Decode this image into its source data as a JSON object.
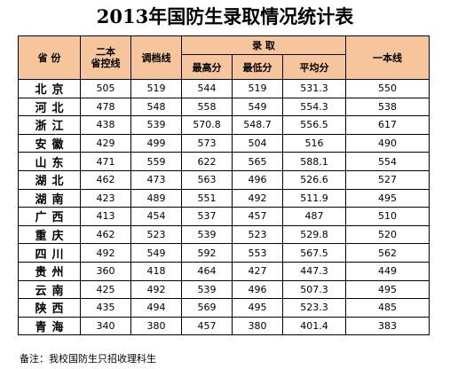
{
  "title": "2013年国防生录取情况统计表",
  "headers": {
    "province": "省 份",
    "control_line": "二本\n省控线",
    "archive_line": "调档线",
    "admission": "录  取",
    "max": "最高分",
    "min": "最低分",
    "avg": "平均分",
    "tier_one": "一本线"
  },
  "rows": [
    {
      "province": "北京",
      "control": "505",
      "archive": "519",
      "max": "544",
      "min": "519",
      "avg": "531.3",
      "tier_one": "550"
    },
    {
      "province": "河北",
      "control": "478",
      "archive": "548",
      "max": "558",
      "min": "549",
      "avg": "554.3",
      "tier_one": "538"
    },
    {
      "province": "浙江",
      "control": "438",
      "archive": "539",
      "max": "570.8",
      "min": "548.7",
      "avg": "556.5",
      "tier_one": "617"
    },
    {
      "province": "安徽",
      "control": "429",
      "archive": "499",
      "max": "573",
      "min": "504",
      "avg": "516",
      "tier_one": "490"
    },
    {
      "province": "山东",
      "control": "471",
      "archive": "559",
      "max": "622",
      "min": "565",
      "avg": "588.1",
      "tier_one": "554"
    },
    {
      "province": "湖北",
      "control": "462",
      "archive": "473",
      "max": "563",
      "min": "496",
      "avg": "526.6",
      "tier_one": "527"
    },
    {
      "province": "湖南",
      "control": "423",
      "archive": "489",
      "max": "551",
      "min": "492",
      "avg": "511.9",
      "tier_one": "495"
    },
    {
      "province": "广西",
      "control": "413",
      "archive": "454",
      "max": "537",
      "min": "457",
      "avg": "487",
      "tier_one": "510"
    },
    {
      "province": "重庆",
      "control": "462",
      "archive": "523",
      "max": "539",
      "min": "523",
      "avg": "529.8",
      "tier_one": "520"
    },
    {
      "province": "四川",
      "control": "492",
      "archive": "549",
      "max": "592",
      "min": "553",
      "avg": "567.5",
      "tier_one": "562"
    },
    {
      "province": "贵州",
      "control": "360",
      "archive": "418",
      "max": "464",
      "min": "427",
      "avg": "447.3",
      "tier_one": "449"
    },
    {
      "province": "云南",
      "control": "425",
      "archive": "492",
      "max": "539",
      "min": "496",
      "avg": "507.3",
      "tier_one": "495"
    },
    {
      "province": "陕西",
      "control": "435",
      "archive": "494",
      "max": "569",
      "min": "495",
      "avg": "523.3",
      "tier_one": "485"
    },
    {
      "province": "青海",
      "control": "340",
      "archive": "380",
      "max": "457",
      "min": "380",
      "avg": "401.4",
      "tier_one": "383"
    }
  ],
  "note": "备注：我校国防生只招收理科生",
  "colors": {
    "shade": "#f6c59b",
    "plain": "#ffffff"
  }
}
